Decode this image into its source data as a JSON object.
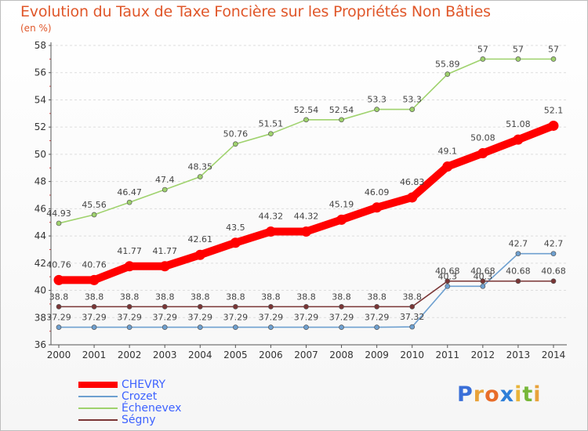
{
  "title": "Evolution du Taux de Taxe Foncière sur les Propriétés Non Bâties",
  "subtitle": "(en %)",
  "logo": {
    "text": "Proxiti",
    "letters": [
      "P",
      "r",
      "o",
      "x",
      "i",
      "t",
      "i"
    ],
    "colors": [
      "#3a6fd8",
      "#e8a23a",
      "#e86d2a",
      "#2e7fd8",
      "#e8b43a",
      "#77b739",
      "#e8a23a"
    ]
  },
  "chart_data": {
    "type": "line",
    "title": "Evolution du Taux de Taxe Foncière sur les Propriétés Non Bâties",
    "ylabel": "(en %)",
    "xlabel": "",
    "x": [
      "2000",
      "2001",
      "2002",
      "2003",
      "2004",
      "2005",
      "2006",
      "2007",
      "2008",
      "2009",
      "2010",
      "2011",
      "2012",
      "2013",
      "2014"
    ],
    "ylim": [
      36,
      58
    ],
    "yticks": [
      36,
      38,
      40,
      42,
      44,
      46,
      48,
      50,
      52,
      54,
      56,
      58
    ],
    "grid": "horizontal dashed",
    "legend_position": "bottom-left",
    "series": [
      {
        "name": "CHEVRY",
        "color": "#ff0000",
        "emphasis": true,
        "values": [
          40.76,
          40.76,
          41.77,
          41.77,
          42.61,
          43.5,
          44.32,
          44.32,
          45.19,
          46.09,
          46.83,
          49.1,
          50.08,
          51.08,
          52.1
        ],
        "labels": [
          "40.76",
          "40.76",
          "41.77",
          "41.77",
          "42.61",
          "43.5",
          "44.32",
          "44.32",
          "45.19",
          "46.09",
          "46.83",
          "49.1",
          "50.08",
          "51.08",
          "52.1"
        ]
      },
      {
        "name": "Crozet",
        "color": "#6ea0d0",
        "emphasis": false,
        "values": [
          37.29,
          37.29,
          37.29,
          37.29,
          37.29,
          37.29,
          37.29,
          37.29,
          37.29,
          37.29,
          37.32,
          40.3,
          40.3,
          42.7,
          42.7
        ],
        "labels": [
          "37.29",
          "37.29",
          "37.29",
          "37.29",
          "37.29",
          "37.29",
          "37.29",
          "37.29",
          "37.29",
          "37.29",
          "37.32",
          "40.3",
          "40.3",
          "42.7",
          "42.7"
        ]
      },
      {
        "name": "Échenevex",
        "color": "#9fd26d",
        "emphasis": false,
        "values": [
          44.93,
          45.56,
          46.47,
          47.4,
          48.35,
          50.76,
          51.51,
          52.54,
          52.54,
          53.3,
          53.3,
          55.89,
          57,
          57,
          57
        ],
        "labels": [
          "44.93",
          "45.56",
          "46.47",
          "47.4",
          "48.35",
          "50.76",
          "51.51",
          "52.54",
          "52.54",
          "53.3",
          "53.3",
          "55.89",
          "57",
          "57",
          "57"
        ]
      },
      {
        "name": "Ségny",
        "color": "#7a3535",
        "emphasis": false,
        "values": [
          38.8,
          38.8,
          38.8,
          38.8,
          38.8,
          38.8,
          38.8,
          38.8,
          38.8,
          38.8,
          38.8,
          40.68,
          40.68,
          40.68,
          40.68
        ],
        "labels": [
          "38.8",
          "38.8",
          "38.8",
          "38.8",
          "38.8",
          "38.8",
          "38.8",
          "38.8",
          "38.8",
          "38.8",
          "38.8",
          "40.68",
          "40.68",
          "40.68",
          "40.68"
        ]
      }
    ]
  }
}
